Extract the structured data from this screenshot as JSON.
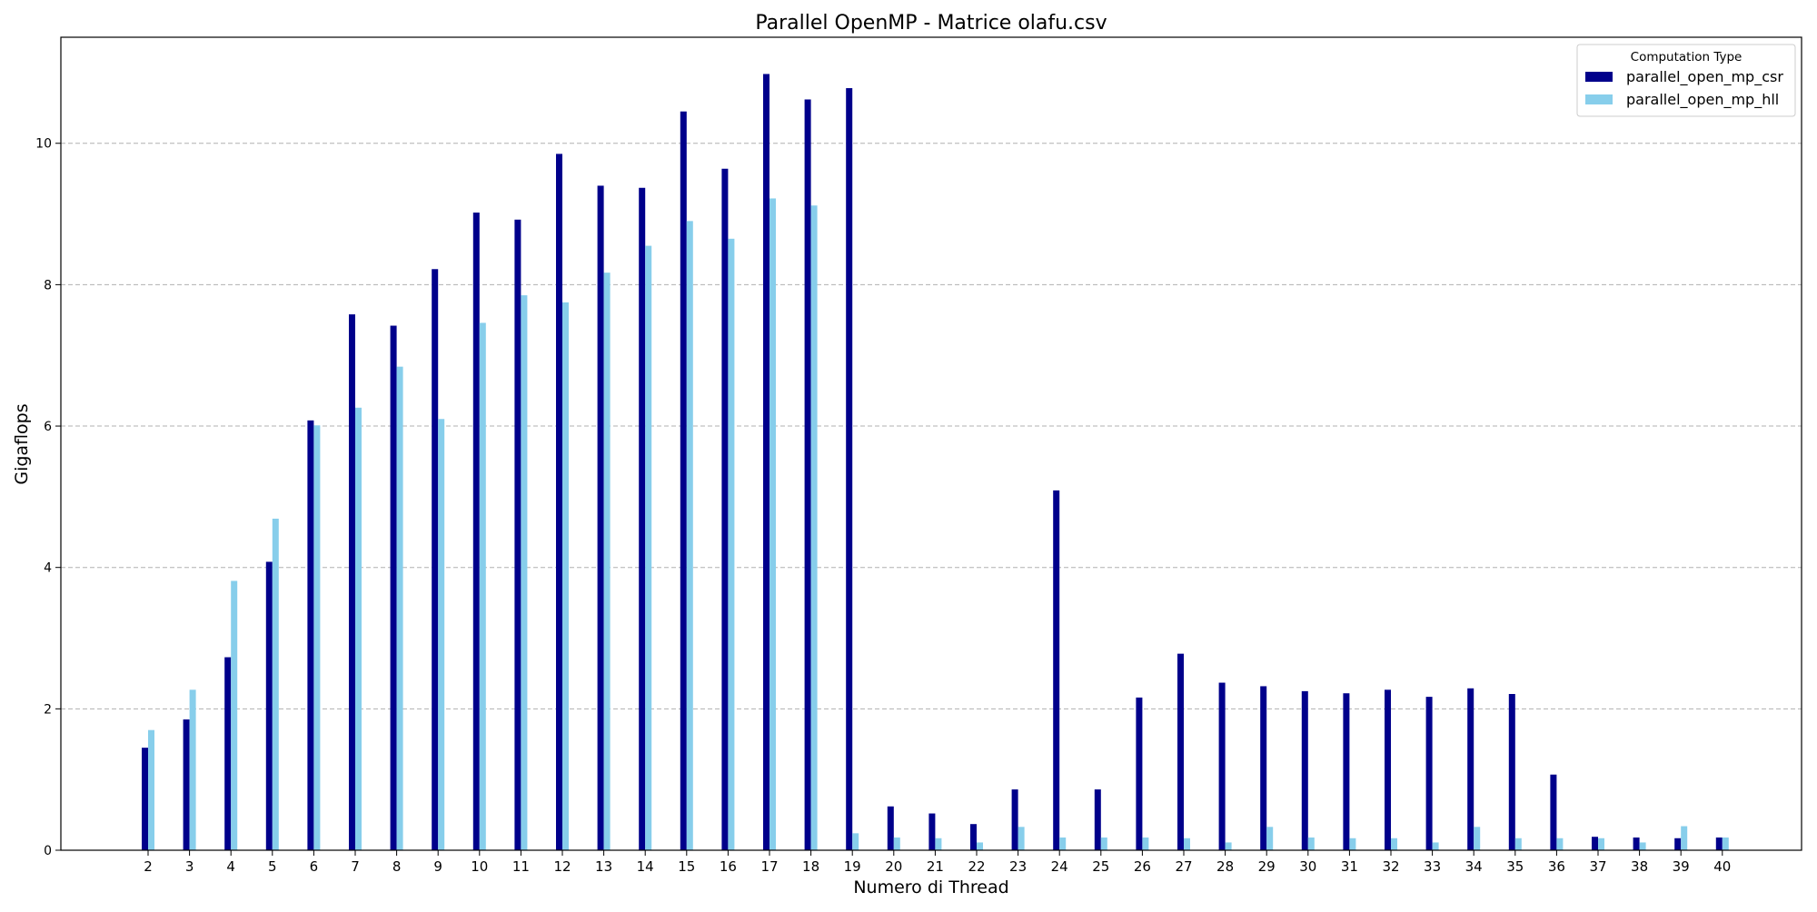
{
  "chart_data": {
    "type": "bar",
    "title": "Parallel OpenMP - Matrice olafu.csv",
    "xlabel": "Numero di Thread",
    "ylabel": "Gigaflops",
    "ylim": [
      0,
      11.5
    ],
    "yticks": [
      "0",
      "2",
      "4",
      "6",
      "8",
      "10"
    ],
    "grid": "y-dashed",
    "legend": {
      "title": "Computation Type",
      "placement": "top-right"
    },
    "categories": [
      "2",
      "3",
      "4",
      "5",
      "6",
      "7",
      "8",
      "9",
      "10",
      "11",
      "12",
      "13",
      "14",
      "15",
      "16",
      "17",
      "18",
      "19",
      "20",
      "21",
      "22",
      "23",
      "24",
      "25",
      "26",
      "27",
      "28",
      "29",
      "30",
      "31",
      "32",
      "33",
      "34",
      "35",
      "36",
      "37",
      "38",
      "39",
      "40"
    ],
    "series": [
      {
        "name": "parallel_open_mp_csr",
        "color": "#00008b",
        "values": [
          1.45,
          1.85,
          2.73,
          4.08,
          6.08,
          7.58,
          7.42,
          8.22,
          9.02,
          8.92,
          9.85,
          9.4,
          9.37,
          10.45,
          9.64,
          10.98,
          10.62,
          10.78,
          0.62,
          0.52,
          0.37,
          0.86,
          5.09,
          0.86,
          2.16,
          2.78,
          2.37,
          2.32,
          2.25,
          2.22,
          2.27,
          2.17,
          2.29,
          2.21,
          1.07,
          0.19,
          0.18,
          0.17,
          0.18
        ]
      },
      {
        "name": "parallel_open_mp_hll",
        "color": "#87ceeb",
        "values": [
          1.7,
          2.27,
          3.81,
          4.69,
          6.01,
          6.26,
          6.84,
          6.1,
          7.46,
          7.85,
          7.75,
          8.17,
          8.55,
          8.9,
          8.65,
          9.22,
          9.12,
          0.24,
          0.18,
          0.17,
          0.11,
          0.33,
          0.18,
          0.18,
          0.18,
          0.17,
          0.11,
          0.33,
          0.18,
          0.17,
          0.17,
          0.11,
          0.33,
          0.17,
          0.17,
          0.17,
          0.11,
          0.34,
          0.18
        ]
      }
    ]
  }
}
